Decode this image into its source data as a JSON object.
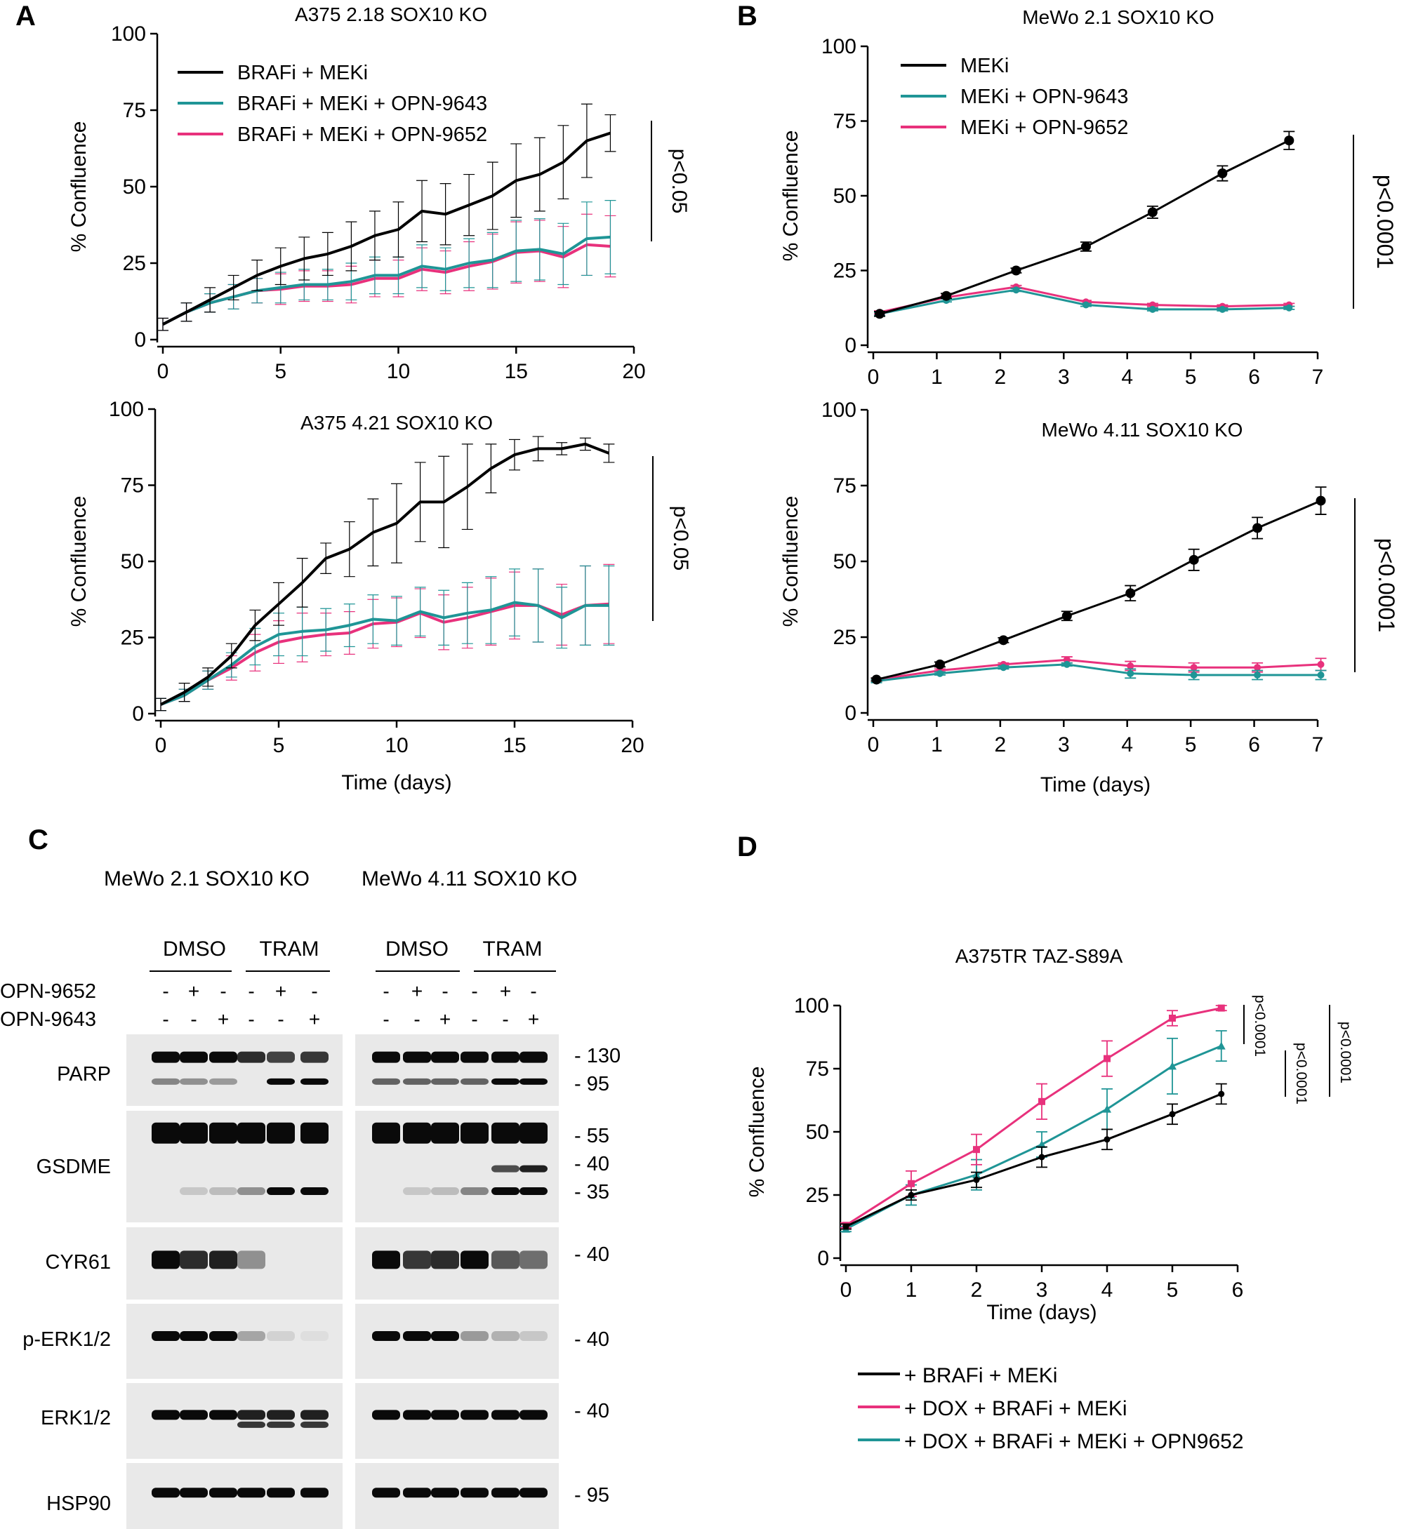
{
  "colors": {
    "black": "#000000",
    "teal": "#1f9596",
    "pink": "#e8317c"
  },
  "chart_data": [
    {
      "panel_label": "A",
      "type": "line",
      "title": "A375 2.18 SOX10 KO",
      "xlabel": "",
      "ylabel": "% Confluence",
      "xlim": [
        0,
        20
      ],
      "ylim": [
        0,
        100
      ],
      "xticks": [
        "0",
        "5",
        "10",
        "15",
        "20"
      ],
      "yticks": [
        "0",
        "25",
        "50",
        "75",
        "100"
      ],
      "x": [
        0,
        1,
        2,
        3,
        4,
        5,
        6,
        7,
        8,
        9,
        10,
        11,
        12,
        13,
        14,
        15,
        16,
        17,
        18,
        19
      ],
      "series": [
        {
          "name": "BRAFi + MEKi",
          "color_key": "black",
          "values": [
            5,
            9,
            13,
            17,
            21,
            24,
            26.5,
            28,
            30.5,
            34,
            36,
            42,
            41,
            44,
            47,
            52,
            54,
            58,
            65,
            67.5
          ],
          "err": [
            2,
            3,
            4,
            4,
            5,
            6,
            7,
            7,
            8,
            8,
            9,
            10,
            10,
            10,
            11,
            12,
            12,
            12,
            12,
            6
          ]
        },
        {
          "name": "BRAFi + MEKi + OPN-9643",
          "color_key": "teal",
          "values": [
            5,
            9,
            12,
            14,
            16,
            17,
            18,
            18,
            19,
            21,
            21,
            24,
            23,
            25,
            26,
            29,
            29.5,
            28,
            33,
            33.5
          ],
          "err": [
            2,
            3,
            3,
            4,
            4,
            5,
            5,
            5,
            6,
            6,
            6,
            7,
            7,
            8,
            9,
            10,
            10,
            10,
            12,
            12
          ]
        },
        {
          "name": "BRAFi + MEKi + OPN-9652",
          "color_key": "pink",
          "values": [
            5,
            9,
            12,
            14,
            16,
            16.5,
            17.5,
            17.5,
            18,
            20,
            20,
            23,
            22,
            24,
            25.5,
            28.5,
            29,
            27,
            31,
            30.5
          ],
          "err": [
            2,
            3,
            3,
            4,
            4,
            5,
            5,
            5,
            6,
            6,
            6,
            7,
            7,
            8,
            9,
            10,
            10,
            10,
            10,
            10
          ]
        }
      ],
      "annotation": "p<0.05"
    },
    {
      "panel_label": "",
      "type": "line",
      "title": "A375 4.21 SOX10 KO",
      "xlabel": "Time (days)",
      "ylabel": "% Confluence",
      "xlim": [
        0,
        20
      ],
      "ylim": [
        0,
        100
      ],
      "xticks": [
        "0",
        "5",
        "10",
        "15",
        "20"
      ],
      "yticks": [
        "0",
        "25",
        "50",
        "75",
        "100"
      ],
      "x": [
        0,
        1,
        2,
        3,
        4,
        5,
        6,
        7,
        8,
        9,
        10,
        11,
        12,
        13,
        14,
        15,
        16,
        17,
        18,
        19
      ],
      "series": [
        {
          "name": "BRAFi + MEKi",
          "color_key": "black",
          "values": [
            3,
            7,
            12,
            19,
            29,
            36,
            43,
            51,
            54,
            59.5,
            62.5,
            69.5,
            69.5,
            74.5,
            80.5,
            85,
            87,
            87,
            88.5,
            85.5
          ],
          "err": [
            2,
            3,
            3,
            4,
            5,
            7,
            8,
            5,
            9,
            11,
            13,
            13,
            15,
            14,
            8,
            5,
            4,
            2,
            2,
            3
          ]
        },
        {
          "name": "BRAFi + MEKi + OPN-9643",
          "color_key": "teal",
          "values": [
            3,
            6,
            11,
            16,
            22,
            26,
            27,
            27.5,
            29,
            31,
            30.5,
            33.5,
            31.5,
            33,
            34,
            36.5,
            35.5,
            31.5,
            35.5,
            35.5
          ],
          "err": [
            2,
            2,
            3,
            4,
            6,
            7,
            8,
            7,
            7,
            8,
            8,
            8,
            9,
            10,
            11,
            11,
            12,
            10,
            13,
            13
          ]
        },
        {
          "name": "BRAFi + MEKi + OPN-9652",
          "color_key": "pink",
          "values": [
            3,
            6,
            11,
            15,
            20,
            23.5,
            25,
            26,
            26.5,
            29.5,
            30,
            33,
            30,
            31.5,
            33.5,
            35.5,
            35.5,
            32.5,
            35.5,
            36
          ],
          "err": [
            2,
            2,
            3,
            4,
            6,
            7,
            8,
            7,
            7,
            8,
            8,
            8,
            9,
            10,
            11,
            11,
            12,
            10,
            13,
            13
          ]
        }
      ],
      "annotation": "p<0.05"
    },
    {
      "panel_label": "B",
      "type": "line",
      "title": "MeWo 2.1 SOX10 KO",
      "xlabel": "",
      "ylabel": "% Confluence",
      "xlim": [
        0,
        7
      ],
      "ylim": [
        0,
        100
      ],
      "xticks": [
        "0",
        "1",
        "2",
        "3",
        "4",
        "5",
        "6",
        "7"
      ],
      "yticks": [
        "0",
        "25",
        "50",
        "75",
        "100"
      ],
      "x": [
        0.1,
        1.15,
        2.25,
        3.35,
        4.4,
        5.5,
        6.55
      ],
      "series": [
        {
          "name": "MEKi",
          "color_key": "black",
          "values": [
            10.5,
            16.5,
            25,
            33,
            44.5,
            57.5,
            68.5
          ],
          "err": [
            0.8,
            0.8,
            0.8,
            1.5,
            2,
            2.5,
            3
          ]
        },
        {
          "name": "MEKi + OPN-9643",
          "color_key": "teal",
          "values": [
            10.5,
            15,
            18.5,
            13.5,
            12,
            12,
            12.5
          ],
          "err": [
            0.5,
            0.5,
            0.5,
            0.5,
            0.5,
            0.5,
            0.5
          ]
        },
        {
          "name": "MEKi + OPN-9652",
          "color_key": "pink",
          "values": [
            11,
            16,
            19.5,
            14.5,
            13.5,
            13,
            13.5
          ],
          "err": [
            0.5,
            0.5,
            0.5,
            0.5,
            0.5,
            0.5,
            0.5
          ]
        }
      ],
      "annotation": "p<0.0001"
    },
    {
      "panel_label": "",
      "type": "line",
      "title": "MeWo 4.11 SOX10 KO",
      "xlabel": "Time (days)",
      "ylabel": "% Confluence",
      "xlim": [
        0,
        7
      ],
      "ylim": [
        0,
        100
      ],
      "xticks": [
        "0",
        "1",
        "2",
        "3",
        "4",
        "5",
        "6",
        "7"
      ],
      "yticks": [
        "0",
        "25",
        "50",
        "75",
        "100"
      ],
      "x": [
        0.05,
        1.05,
        2.05,
        3.05,
        4.05,
        5.05,
        6.05,
        7.05
      ],
      "series": [
        {
          "name": "MEKi",
          "color_key": "black",
          "values": [
            11,
            16,
            24,
            32,
            39.5,
            50.5,
            61,
            70
          ],
          "err": [
            0.5,
            0.8,
            0.8,
            1.5,
            2.5,
            3.5,
            3.5,
            4.5
          ]
        },
        {
          "name": "MEKi + OPN-9643",
          "color_key": "teal",
          "values": [
            10.5,
            13,
            15,
            16,
            13,
            12.5,
            12.5,
            12.5
          ],
          "err": [
            0.5,
            0.5,
            0.5,
            0.5,
            1.5,
            1.5,
            1.5,
            1.5
          ]
        },
        {
          "name": "MEKi + OPN-9652",
          "color_key": "pink",
          "values": [
            11,
            14,
            16,
            17.5,
            15.5,
            15,
            15,
            16
          ],
          "err": [
            0.5,
            0.5,
            0.5,
            1,
            1.5,
            1.5,
            1.5,
            2
          ]
        }
      ],
      "annotation": "p<0.0001"
    },
    {
      "panel_label": "D",
      "type": "line",
      "title": "A375TR TAZ-S89A",
      "xlabel": "Time (days)",
      "ylabel": "% Confluence",
      "xlim": [
        0,
        6
      ],
      "ylim": [
        0,
        100
      ],
      "xticks": [
        "0",
        "1",
        "2",
        "3",
        "4",
        "5",
        "6"
      ],
      "yticks": [
        "0",
        "25",
        "50",
        "75",
        "100"
      ],
      "x": [
        0,
        1,
        2,
        3,
        4,
        5,
        5.75
      ],
      "series": [
        {
          "name": "+ BRAFi + MEKi",
          "color_key": "black",
          "values": [
            12.5,
            25,
            31,
            40,
            47,
            57,
            65
          ],
          "err": [
            1,
            2,
            3,
            4,
            4,
            4,
            4
          ]
        },
        {
          "name": "+ DOX + BRAFi + MEKi",
          "color_key": "pink",
          "values": [
            13,
            29.5,
            43,
            62,
            79,
            95,
            99
          ],
          "err": [
            1,
            5,
            6,
            7,
            7,
            3,
            1
          ]
        },
        {
          "name": "+ DOX + BRAFi + MEKi + OPN9652",
          "color_key": "teal",
          "values": [
            11.5,
            25,
            33,
            45,
            59,
            76,
            84
          ],
          "err": [
            1,
            4,
            6,
            5,
            8,
            11,
            6
          ]
        }
      ],
      "annotations": [
        "p<0.0001",
        "p<0.0001",
        "p<0.0001"
      ]
    }
  ],
  "blot": {
    "panel_label": "C",
    "group_titles": [
      "MeWo 2.1 SOX10 KO",
      "MeWo 4.11 SOX10 KO"
    ],
    "conditions": [
      "DMSO",
      "TRAM",
      "DMSO",
      "TRAM"
    ],
    "treatment_rows": [
      {
        "label": "OPN-9652",
        "marks": [
          "-",
          "+",
          "-",
          "-",
          "+",
          "-"
        ]
      },
      {
        "label": "OPN-9643",
        "marks": [
          "-",
          "-",
          "+",
          "-",
          "-",
          "+"
        ]
      }
    ],
    "proteins": [
      "PARP",
      "GSDME",
      "CYR61",
      "p-ERK1/2",
      "ERK1/2",
      "HSP90"
    ],
    "mw_markers": [
      [
        "- 130",
        "- 95"
      ],
      [
        "- 55",
        "- 40",
        "- 35"
      ],
      [
        "- 40"
      ],
      [
        "- 40"
      ],
      [
        "- 40"
      ],
      [
        "- 95"
      ]
    ]
  }
}
